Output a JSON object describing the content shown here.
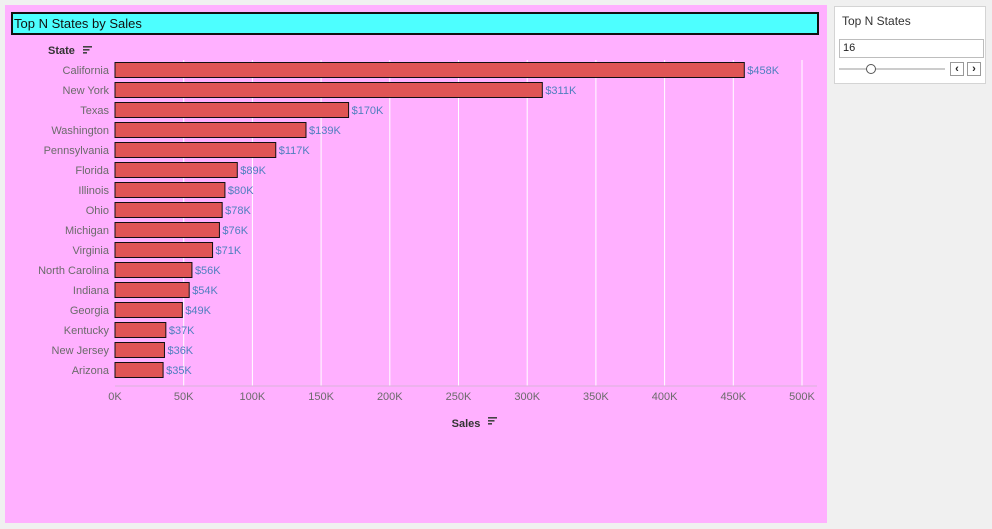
{
  "dashboard": {
    "background_color": "#ffb0ff"
  },
  "title": "Top N States by Sales",
  "filter": {
    "title": "Top N States",
    "value": "16",
    "slider_fraction": 0.3,
    "prev_glyph": "‹",
    "next_glyph": "›"
  },
  "chart_data": {
    "type": "bar",
    "orientation": "horizontal",
    "title": "Top N States by Sales",
    "ylabel": "State",
    "xlabel": "Sales",
    "categories": [
      "California",
      "New York",
      "Texas",
      "Washington",
      "Pennsylvania",
      "Florida",
      "Illinois",
      "Ohio",
      "Michigan",
      "Virginia",
      "North Carolina",
      "Indiana",
      "Georgia",
      "Kentucky",
      "New Jersey",
      "Arizona"
    ],
    "values": [
      458,
      311,
      170,
      139,
      117,
      89,
      80,
      78,
      76,
      71,
      56,
      54,
      49,
      37,
      36,
      35
    ],
    "value_units": "thousands USD",
    "data_labels": [
      "$458K",
      "$311K",
      "$170K",
      "$139K",
      "$117K",
      "$89K",
      "$80K",
      "$78K",
      "$76K",
      "$71K",
      "$56K",
      "$54K",
      "$49K",
      "$37K",
      "$36K",
      "$35K"
    ],
    "xticks": [
      "0K",
      "50K",
      "100K",
      "150K",
      "200K",
      "250K",
      "300K",
      "350K",
      "400K",
      "450K",
      "500K"
    ],
    "xlim": [
      0,
      500
    ],
    "grid": true,
    "bar_color": "#e05555",
    "bar_edge_color": "#111111",
    "label_color": "#4f7fbf",
    "axis_text_color": "#6b6b6b"
  }
}
